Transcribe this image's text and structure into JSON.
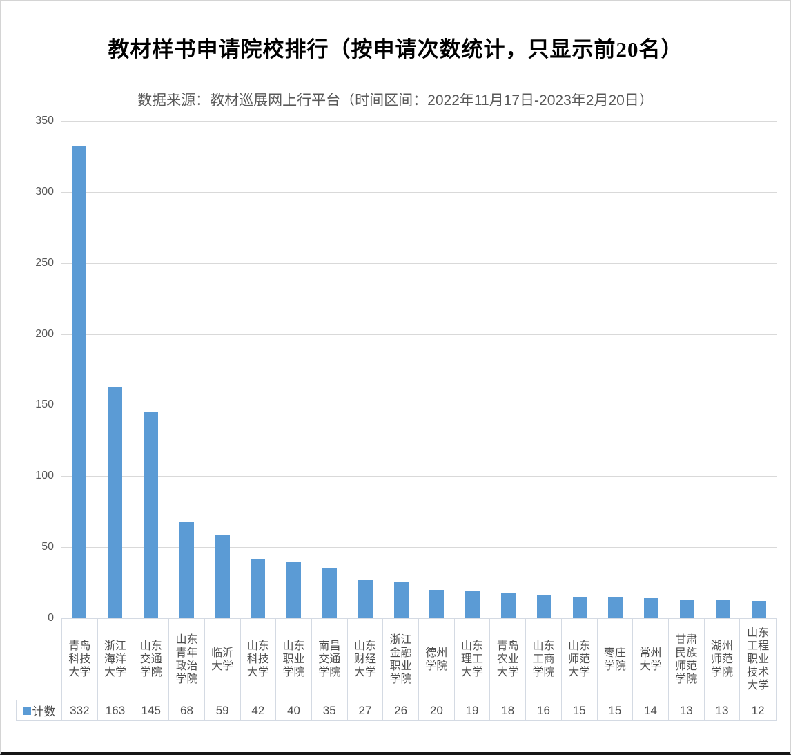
{
  "chart_data": {
    "type": "bar",
    "title": "教材样书申请院校排行（按申请次数统计，只显示前20名）",
    "subtitle": "数据来源：教材巡展网上行平台（时间区间：2022年11月17日-2023年2月20日）",
    "categories": [
      "青岛科技大学",
      "浙江海洋大学",
      "山东交通学院",
      "山东青年政治学院",
      "临沂大学",
      "山东科技大学",
      "山东职业学院",
      "南昌交通学院",
      "山东财经大学",
      "浙江金融职业学院",
      "德州学院",
      "山东理工大学",
      "青岛农业大学",
      "山东工商学院",
      "山东师范大学",
      "枣庄学院",
      "常州大学",
      "甘肃民族师范学院",
      "湖州师范学院",
      "山东工程职业技术大学"
    ],
    "series": [
      {
        "name": "计数",
        "values": [
          332,
          163,
          145,
          68,
          59,
          42,
          40,
          35,
          27,
          26,
          20,
          19,
          18,
          16,
          15,
          15,
          14,
          13,
          13,
          12
        ]
      }
    ],
    "ylim": [
      0,
      350
    ],
    "yticks": [
      0,
      50,
      100,
      150,
      200,
      250,
      300,
      350
    ],
    "grid": true,
    "legend_position": "data-table-left",
    "xlabel": "",
    "ylabel": ""
  },
  "colors": {
    "bar": "#5B9BD5",
    "gridline": "#D9D9D9",
    "table_border": "#D4DAE3",
    "axis_text": "#595959",
    "table_text": "#4D4D4D",
    "title_text": "#000000",
    "subtitle_text": "#595959"
  }
}
